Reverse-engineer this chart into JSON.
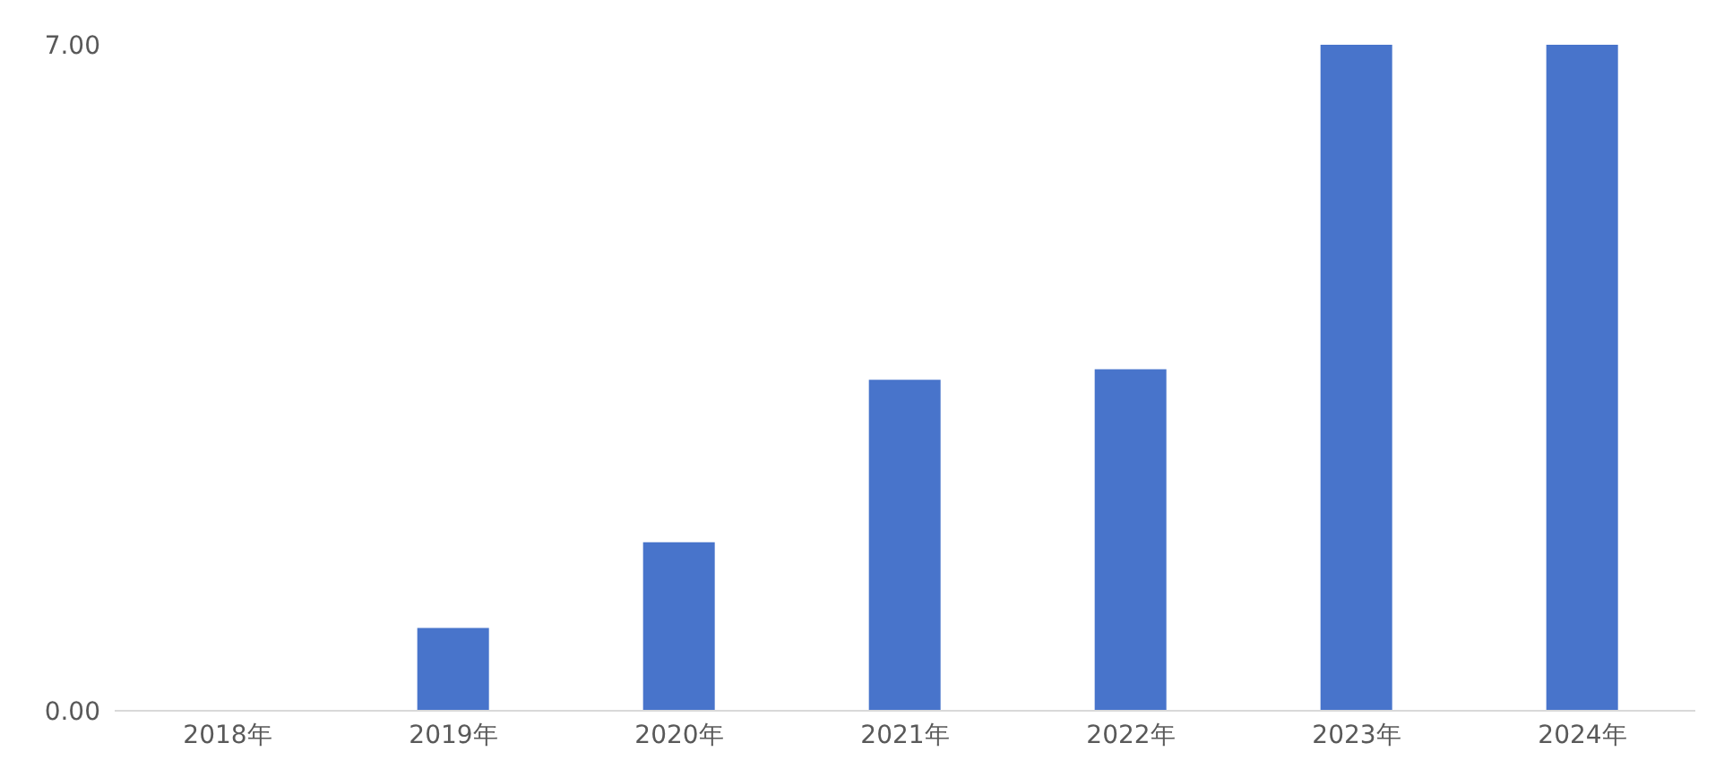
{
  "chart_data": {
    "type": "bar",
    "categories": [
      "2018年",
      "2019年",
      "2020年",
      "2021年",
      "2022年",
      "2023年",
      "2024年"
    ],
    "values": [
      0,
      0.87,
      1.77,
      3.48,
      3.59,
      7,
      7
    ],
    "color": "#4874cb",
    "ylim": [
      0,
      7
    ],
    "yticks": [
      {
        "value": 0,
        "label": "0.00"
      },
      {
        "value": 7,
        "label": "7.00"
      }
    ],
    "grid": false,
    "legend": false
  }
}
